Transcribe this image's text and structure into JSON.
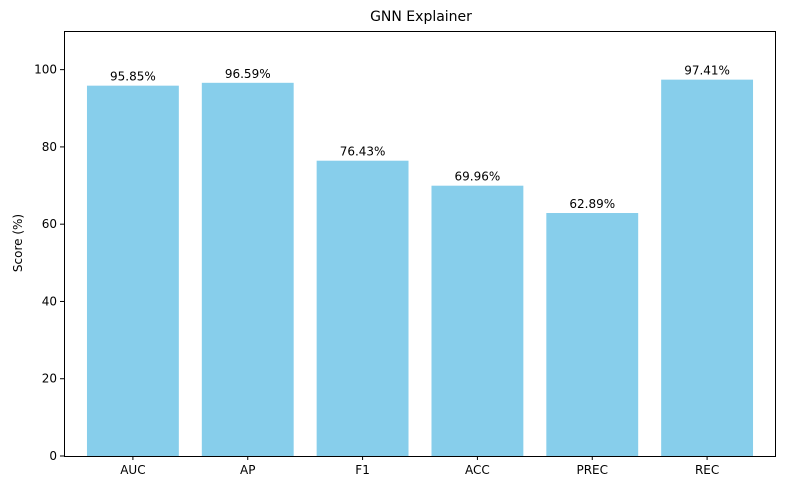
{
  "chart_data": {
    "type": "bar",
    "title": "GNN Explainer",
    "xlabel": "",
    "ylabel": "Score (%)",
    "categories": [
      "AUC",
      "AP",
      "F1",
      "ACC",
      "PREC",
      "REC"
    ],
    "values": [
      95.85,
      96.59,
      76.43,
      69.96,
      62.89,
      97.41
    ],
    "data_labels": [
      "95.85%",
      "96.59%",
      "76.43%",
      "69.96%",
      "62.89%",
      "97.41%"
    ],
    "ylim": [
      0,
      110
    ],
    "yticks": [
      0,
      20,
      40,
      60,
      80,
      100
    ],
    "grid": false,
    "legend": "none",
    "bar_color": "#87ceeb"
  }
}
